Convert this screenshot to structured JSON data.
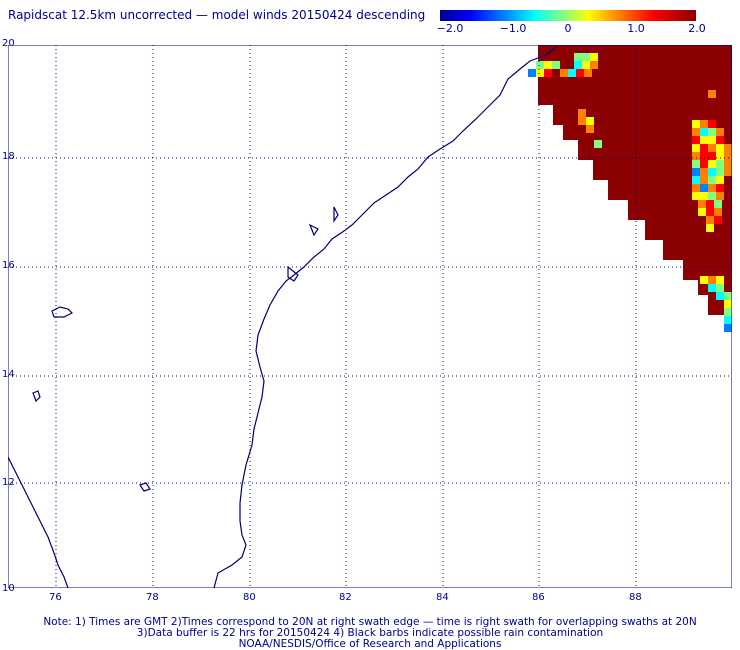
{
  "title": "Rapidscat 12.5km uncorrected — model winds 20150424 descending",
  "colorbar": {
    "ticks": [
      "−2.0",
      "−1.0",
      "0",
      "1.0",
      "2.0"
    ],
    "colors": [
      "#00008b",
      "#0000ff",
      "#0080ff",
      "#00ffff",
      "#80ff80",
      "#ffff00",
      "#ff8000",
      "#ff0000",
      "#8b0000"
    ]
  },
  "axes": {
    "x_ticks": [
      "76",
      "78",
      "80",
      "82",
      "84",
      "86",
      "88"
    ],
    "y_ticks": [
      "20",
      "18",
      "16",
      "14",
      "12",
      "10"
    ],
    "x_range": [
      75.0,
      89.8
    ],
    "y_range": [
      10.0,
      20.0
    ]
  },
  "notes": {
    "line1": "Note: 1) Times are GMT 2)Times correspond to 20N at right swath edge — time is right swath for overlapping swaths at 20N",
    "line2": "3)Data buffer is 22 hrs for 20150424 4) Black barbs indicate possible rain contamination",
    "line3": "NOAA/NESDIS/Office of Research and Applications"
  }
}
